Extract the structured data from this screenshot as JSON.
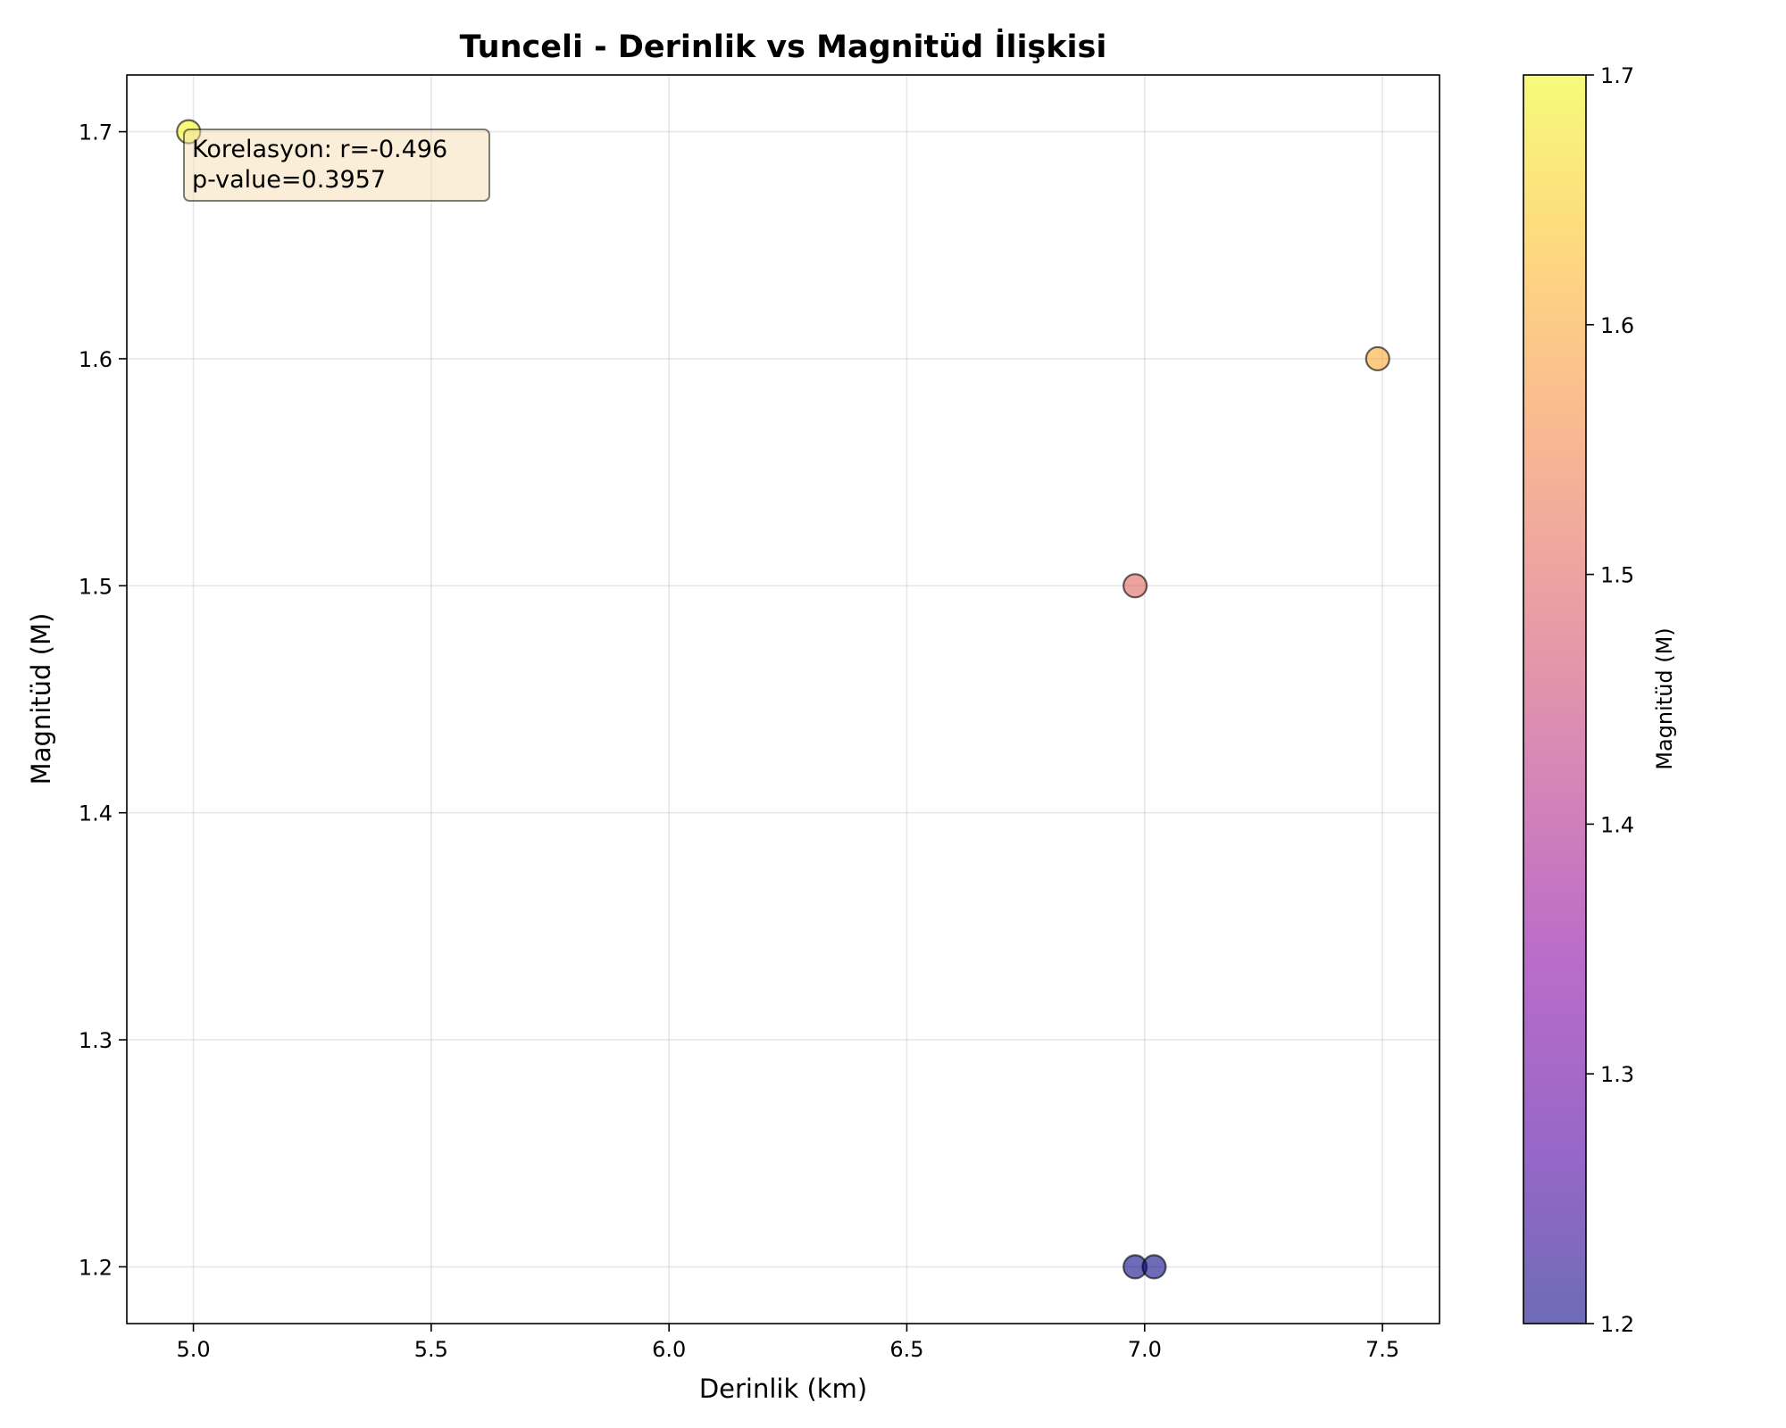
{
  "chart_data": {
    "type": "scatter",
    "title": "Tunceli - Derinlik vs Magnitüd İlişkisi",
    "xlabel": "Derinlik (km)",
    "ylabel": "Magnitüd (M)",
    "xlim": [
      4.86,
      7.62
    ],
    "ylim": [
      1.175,
      1.725
    ],
    "xticks": [
      5.0,
      5.5,
      6.0,
      6.5,
      7.0,
      7.5
    ],
    "yticks": [
      1.2,
      1.3,
      1.4,
      1.5,
      1.6,
      1.7
    ],
    "xtick_labels": [
      "5.0",
      "5.5",
      "6.0",
      "6.5",
      "7.0",
      "7.5"
    ],
    "ytick_labels": [
      "1.2",
      "1.3",
      "1.4",
      "1.5",
      "1.6",
      "1.7"
    ],
    "grid": true,
    "points": [
      {
        "x": 4.99,
        "y": 1.7
      },
      {
        "x": 7.49,
        "y": 1.6
      },
      {
        "x": 6.98,
        "y": 1.5
      },
      {
        "x": 6.98,
        "y": 1.2
      },
      {
        "x": 7.02,
        "y": 1.2
      }
    ],
    "colorbar": {
      "label": "Magnitüd (M)",
      "range": [
        1.2,
        1.7
      ],
      "ticks": [
        1.2,
        1.3,
        1.4,
        1.5,
        1.6,
        1.7
      ],
      "tick_labels": [
        "1.2",
        "1.3",
        "1.4",
        "1.5",
        "1.6",
        "1.7"
      ],
      "colormap": "plasma",
      "alpha": 0.6
    },
    "annotation": {
      "lines": [
        "Korelasyon: r=-0.496",
        "p-value=0.3957"
      ],
      "background": "#f5deb3"
    }
  }
}
